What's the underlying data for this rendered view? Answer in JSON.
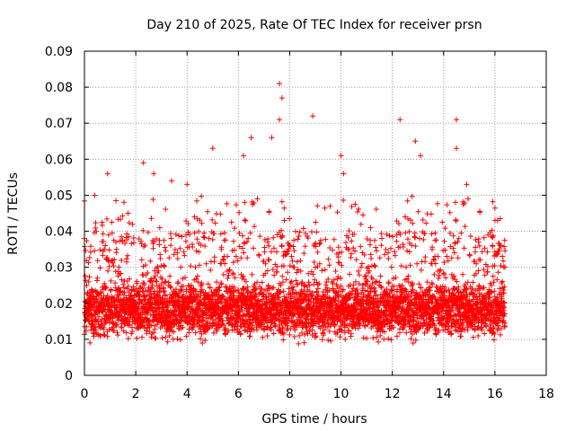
{
  "chart_data": {
    "type": "scatter",
    "title": "Day 210 of 2025, Rate Of TEC Index for receiver prsn",
    "xlabel": "GPS time / hours",
    "ylabel": "ROTI / TECUs",
    "xlim": [
      0,
      18
    ],
    "ylim": [
      0,
      0.09
    ],
    "x_ticks": [
      "0",
      "2",
      "4",
      "6",
      "8",
      "10",
      "12",
      "14",
      "16",
      "18"
    ],
    "y_ticks": [
      "0",
      "0.01",
      "0.02",
      "0.03",
      "0.04",
      "0.05",
      "0.06",
      "0.07",
      "0.08",
      "0.09"
    ],
    "grid": true,
    "marker": "+",
    "series_color": "#ff0000",
    "data_span_hours": [
      0,
      16.4
    ],
    "typical_band": [
      0.01,
      0.025
    ],
    "notable_points": [
      {
        "x": 0.0,
        "y": 0.038
      },
      {
        "x": 0.4,
        "y": 0.05
      },
      {
        "x": 0.9,
        "y": 0.056
      },
      {
        "x": 1.7,
        "y": 0.045
      },
      {
        "x": 2.3,
        "y": 0.059
      },
      {
        "x": 2.7,
        "y": 0.056
      },
      {
        "x": 3.4,
        "y": 0.054
      },
      {
        "x": 4.0,
        "y": 0.053
      },
      {
        "x": 5.0,
        "y": 0.063
      },
      {
        "x": 6.2,
        "y": 0.061
      },
      {
        "x": 6.5,
        "y": 0.066
      },
      {
        "x": 7.3,
        "y": 0.066
      },
      {
        "x": 7.6,
        "y": 0.081
      },
      {
        "x": 7.7,
        "y": 0.077
      },
      {
        "x": 7.6,
        "y": 0.071
      },
      {
        "x": 8.9,
        "y": 0.072
      },
      {
        "x": 10.0,
        "y": 0.061
      },
      {
        "x": 10.1,
        "y": 0.056
      },
      {
        "x": 12.3,
        "y": 0.071
      },
      {
        "x": 12.9,
        "y": 0.065
      },
      {
        "x": 13.1,
        "y": 0.061
      },
      {
        "x": 14.5,
        "y": 0.071
      },
      {
        "x": 14.5,
        "y": 0.063
      },
      {
        "x": 14.9,
        "y": 0.053
      },
      {
        "x": 16.1,
        "y": 0.043
      }
    ]
  }
}
